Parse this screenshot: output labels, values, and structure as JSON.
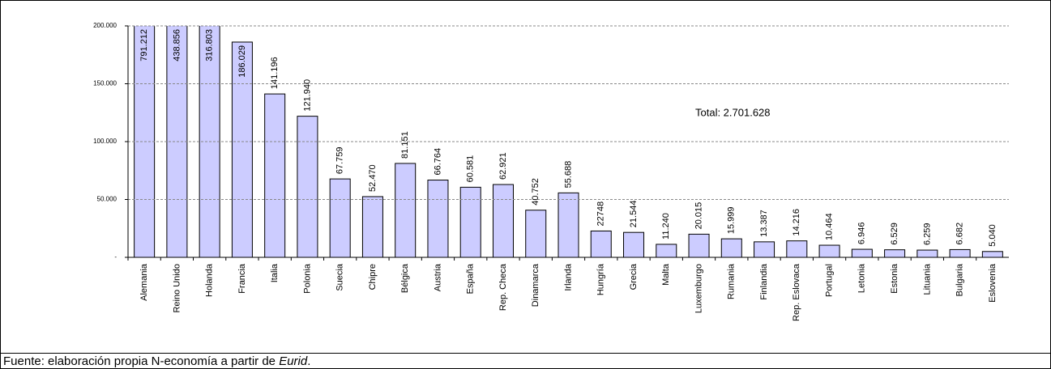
{
  "chart_data": {
    "type": "bar",
    "categories": [
      "Alemania",
      "Reino Unido",
      "Holanda",
      "Francia",
      "Italia",
      "Polonia",
      "Suecia",
      "Chipre",
      "Bélgica",
      "Austria",
      "España",
      "Rep. Checa",
      "Dinamarca",
      "Irlanda",
      "Hungría",
      "Grecia",
      "Malta",
      "Luxemburgo",
      "Rumania",
      "Finlandia",
      "Rep. Eslovaca",
      "Portugal",
      "Letonia",
      "Estonia",
      "Lituania",
      "Bulgaria",
      "Eslovenia"
    ],
    "values": [
      791212,
      438856,
      316803,
      186029,
      141196,
      121940,
      67759,
      52470,
      81151,
      66764,
      60581,
      62921,
      40752,
      55688,
      22748,
      21544,
      11240,
      20015,
      15999,
      13387,
      14216,
      10464,
      6946,
      6529,
      6259,
      6682,
      5040
    ],
    "value_labels": [
      "791.212",
      "438.856",
      "316.803",
      "186.029",
      "141.196",
      "121.940",
      "67.759",
      "52.470",
      "81.151",
      "66.764",
      "60.581",
      "62.921",
      "40.752",
      "55.688",
      "22748",
      "21.544",
      "11.240",
      "20.015",
      "15.999",
      "13.387",
      "14.216",
      "10.464",
      "6.946",
      "6.529",
      "6.259",
      "6.682",
      "5.040"
    ],
    "color": "#ccccff",
    "ylim": [
      0,
      200000
    ],
    "yticks": [
      {
        "value": 0,
        "label": "-"
      },
      {
        "value": 50000,
        "label": "50.000"
      },
      {
        "value": 100000,
        "label": "100.000"
      },
      {
        "value": 150000,
        "label": "150.000"
      },
      {
        "value": 200000,
        "label": "200.000"
      }
    ],
    "grid": true,
    "annotations": [
      "Total: 2.701.628"
    ],
    "source": {
      "text": "Fuente: elaboración propia N-economía a partir de ",
      "italic": "Eurid",
      "end": "."
    }
  }
}
